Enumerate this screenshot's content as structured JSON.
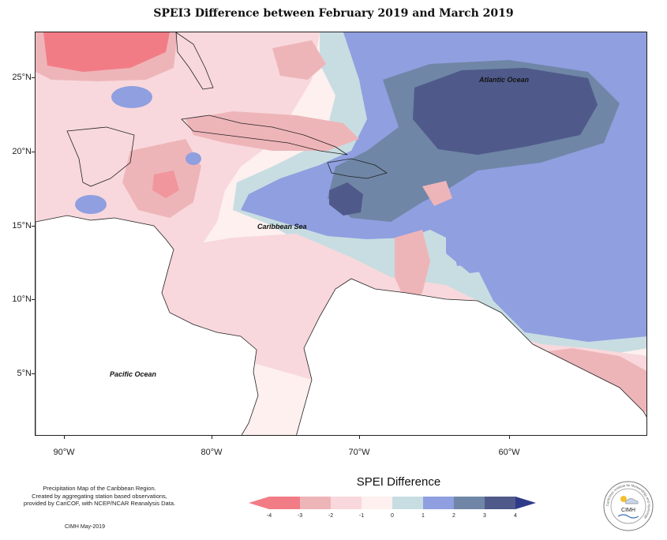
{
  "title": "SPEI3 Difference between February 2019 and March 2019",
  "map": {
    "latitude_labels": [
      {
        "text": "25°N",
        "value": 25
      },
      {
        "text": "20°N",
        "value": 20
      },
      {
        "text": "15°N",
        "value": 15
      },
      {
        "text": "10°N",
        "value": 10
      },
      {
        "text": "5°N",
        "value": 5
      }
    ],
    "longitude_labels": [
      {
        "text": "90°W",
        "value": -90
      },
      {
        "text": "80°W",
        "value": -80
      },
      {
        "text": "70°W",
        "value": -70
      },
      {
        "text": "60°W",
        "value": -60
      }
    ],
    "place_labels": {
      "atlantic": "Atlantic Ocean",
      "caribbean": "Caribbean Sea",
      "pacific": "Pacific Ocean"
    }
  },
  "legend": {
    "title": "SPEI Difference",
    "ticks": [
      "-4",
      "-3",
      "-2",
      "-1",
      "0",
      "1",
      "2",
      "3",
      "4"
    ],
    "colors": [
      "#f27c85",
      "#eeb5b9",
      "#f8d8dc",
      "#fdf0ef",
      "#c8dde2",
      "#8f9fdf",
      "#6f86a6",
      "#4f5a8a",
      "#2f3a8a"
    ]
  },
  "credits": {
    "line1": "Precipitation Map of the Caribbean Region.",
    "line2": "Created by aggregating station based observations,",
    "line3": "provided by CariCOF, with NCEP/NCAR Reanalysis Data.",
    "date": "CIMH May-2019"
  },
  "logo": {
    "text": "CIMH",
    "ring_text": "Caribbean Institute for Meteorology and Hydrology",
    "icon": "cimh-logo-icon"
  }
}
